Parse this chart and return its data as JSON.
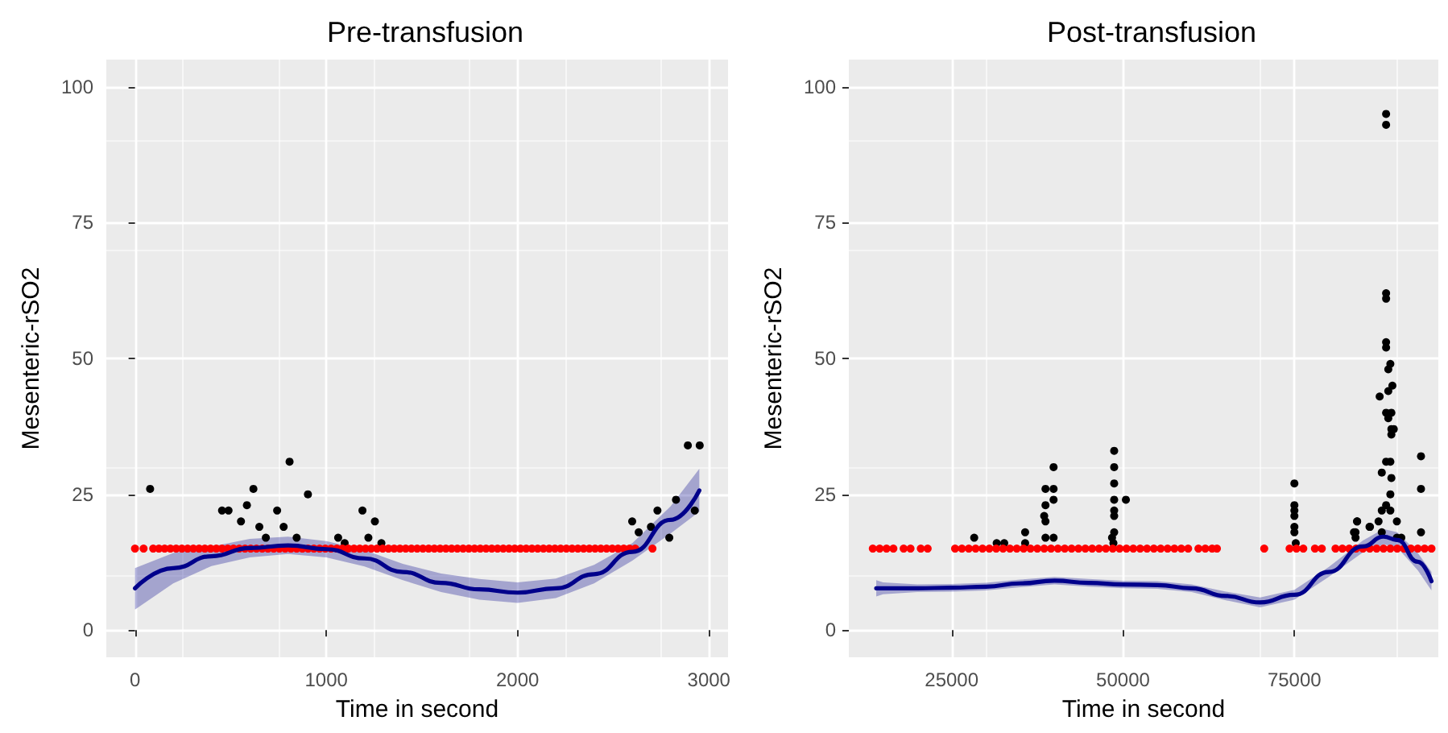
{
  "chart_data": [
    {
      "type": "scatter",
      "title": "Pre-transfusion",
      "xlabel": "Time in second",
      "ylabel": "Mesenteric-rSO2",
      "xlim": [
        -150,
        3100
      ],
      "xticks": [
        0,
        1000,
        2000,
        3000
      ],
      "ylim": [
        -5,
        105
      ],
      "yticks": [
        0,
        25,
        50,
        75,
        100
      ],
      "grid": true,
      "series": [
        {
          "color": "#000000",
          "marker": "circle",
          "x": [
            79,
            455,
            489,
            554,
            585,
            619,
            650,
            684,
            743,
            777,
            808,
            845,
            904,
            1062,
            1096,
            1189,
            1220,
            1254,
            1288,
            2599,
            2633,
            2697,
            2731,
            2793,
            2828,
            2890,
            2926,
            2952
          ],
          "values": [
            26,
            22,
            22,
            20,
            23,
            26,
            19,
            17,
            22,
            19,
            31,
            17,
            25,
            17,
            16,
            22,
            17,
            20,
            16,
            20,
            18,
            19,
            22,
            17,
            24,
            34,
            22,
            34
          ]
        },
        {
          "color": "#ff0000",
          "marker": "circle",
          "x": [
            0,
            45,
            95,
            125,
            155,
            185,
            215,
            245,
            275,
            305,
            335,
            365,
            395,
            425,
            455,
            485,
            515,
            545,
            575,
            605,
            635,
            665,
            695,
            725,
            755,
            785,
            815,
            845,
            875,
            905,
            935,
            965,
            995,
            1025,
            1055,
            1085,
            1115,
            1145,
            1175,
            1205,
            1235,
            1265,
            1295,
            1325,
            1355,
            1385,
            1415,
            1445,
            1475,
            1505,
            1535,
            1565,
            1595,
            1625,
            1655,
            1685,
            1715,
            1745,
            1775,
            1805,
            1835,
            1865,
            1895,
            1925,
            1955,
            1985,
            2015,
            2045,
            2075,
            2105,
            2135,
            2165,
            2195,
            2225,
            2255,
            2285,
            2315,
            2345,
            2375,
            2405,
            2435,
            2465,
            2495,
            2525,
            2555,
            2585,
            2615,
            2705
          ],
          "values": [
            15,
            15,
            15,
            15,
            15,
            15,
            15,
            15,
            15,
            15,
            15,
            15,
            15,
            15,
            15,
            15,
            15,
            15,
            15,
            15,
            15,
            15,
            15,
            15,
            15,
            15,
            15,
            15,
            15,
            15,
            15,
            15,
            15,
            15,
            15,
            15,
            15,
            15,
            15,
            15,
            15,
            15,
            15,
            15,
            15,
            15,
            15,
            15,
            15,
            15,
            15,
            15,
            15,
            15,
            15,
            15,
            15,
            15,
            15,
            15,
            15,
            15,
            15,
            15,
            15,
            15,
            15,
            15,
            15,
            15,
            15,
            15,
            15,
            15,
            15,
            15,
            15,
            15,
            15,
            15,
            15,
            15,
            15,
            15,
            15,
            15,
            15,
            15
          ]
        },
        {
          "type": "line",
          "color": "#00008b",
          "marker": "none",
          "line_style": "solid",
          "x": [
            0,
            200,
            400,
            600,
            800,
            1000,
            1200,
            1400,
            1600,
            1800,
            2000,
            2200,
            2400,
            2600,
            2800,
            2950
          ],
          "values": [
            7.7,
            11.4,
            13.6,
            15.1,
            15.6,
            14.9,
            13.2,
            10.7,
            8.7,
            7.5,
            6.9,
            7.7,
            10.3,
            14.4,
            20.3,
            25.7
          ],
          "lower": [
            3.8,
            8.6,
            11.8,
            13.4,
            14.0,
            13.4,
            11.7,
            9.2,
            7.0,
            5.6,
            5.0,
            5.9,
            8.6,
            12.8,
            17.8,
            21.8
          ],
          "upper": [
            11.4,
            14.2,
            15.4,
            16.8,
            17.2,
            16.4,
            14.7,
            12.2,
            10.4,
            9.4,
            8.8,
            9.5,
            12.0,
            16.0,
            22.8,
            29.7
          ]
        }
      ]
    },
    {
      "type": "scatter",
      "title": "Post-transfusion",
      "xlabel": "Time in second",
      "ylabel": "Mesenteric-rSO2",
      "xlim": [
        10000,
        96000
      ],
      "xticks": [
        25000,
        50000,
        75000
      ],
      "ylim": [
        -5,
        105
      ],
      "yticks": [
        0,
        25,
        50,
        75,
        100
      ],
      "grid": true,
      "series": [
        {
          "color": "#000000",
          "marker": "circle",
          "x": [
            28290,
            31570,
            32670,
            35720,
            35720,
            39870,
            38690,
            39870,
            39870,
            38690,
            38500,
            38690,
            38690,
            39870,
            48710,
            48710,
            48710,
            48710,
            50420,
            48710,
            48710,
            48710,
            48400,
            48600,
            75000,
            75000,
            75000,
            75000,
            75000,
            75000,
            75200,
            83920,
            83920,
            84150,
            85960,
            88380,
            88380,
            88380,
            88380,
            88380,
            88380,
            89000,
            88700,
            89300,
            88700,
            87440,
            88380,
            89150,
            88700,
            89150,
            89500,
            89150,
            88380,
            89000,
            87750,
            89150,
            89000,
            88380,
            87750,
            89000,
            84150,
            86030,
            87280,
            89950,
            83690,
            87750,
            89950,
            90600,
            93470,
            93470,
            93470
          ],
          "values": [
            17,
            16,
            16,
            18,
            16,
            30,
            26,
            26,
            24,
            23,
            21,
            20,
            17,
            17,
            33,
            30,
            27,
            24,
            24,
            22,
            21,
            18,
            17,
            16,
            27,
            23,
            22,
            21,
            19,
            18,
            16,
            18,
            17,
            20,
            19,
            95,
            93,
            62,
            61,
            53,
            52,
            49,
            48,
            45,
            44,
            43,
            40,
            40,
            39,
            37,
            37,
            36,
            31,
            31,
            29,
            28,
            25,
            23,
            22,
            22,
            20,
            19,
            20,
            20,
            18,
            18,
            17,
            17,
            32,
            26,
            18
          ]
        },
        {
          "color": "#ff0000",
          "marker": "circle",
          "x": [
            13500,
            14500,
            15500,
            16500,
            18000,
            19000,
            20500,
            21500,
            25500,
            26500,
            27500,
            28500,
            29500,
            30500,
            31500,
            32500,
            33500,
            34500,
            35500,
            36500,
            37500,
            38500,
            39500,
            40500,
            41500,
            42500,
            43500,
            44500,
            45500,
            46500,
            47500,
            48500,
            49500,
            50500,
            51500,
            52500,
            53500,
            54500,
            55500,
            56500,
            57500,
            58500,
            59500,
            61000,
            62000,
            63000,
            63700,
            70600,
            74300,
            75300,
            76300,
            78000,
            79000,
            81000,
            82000,
            83000,
            84000,
            85000,
            86000,
            87000,
            88000,
            89000,
            90000,
            91000,
            92000,
            93000,
            94000,
            95000
          ],
          "values": [
            15,
            15,
            15,
            15,
            15,
            15,
            15,
            15,
            15,
            15,
            15,
            15,
            15,
            15,
            15,
            15,
            15,
            15,
            15,
            15,
            15,
            15,
            15,
            15,
            15,
            15,
            15,
            15,
            15,
            15,
            15,
            15,
            15,
            15,
            15,
            15,
            15,
            15,
            15,
            15,
            15,
            15,
            15,
            15,
            15,
            15,
            15,
            15,
            15,
            15,
            15,
            15,
            15,
            15,
            15,
            15,
            15,
            15,
            15,
            15,
            15,
            15,
            15,
            15,
            15,
            15,
            15,
            15
          ]
        },
        {
          "type": "line",
          "color": "#00008b",
          "marker": "none",
          "line_style": "solid",
          "x": [
            14000,
            15000,
            20000,
            25000,
            30000,
            35000,
            40000,
            45000,
            50000,
            55000,
            60000,
            65000,
            70000,
            75000,
            80000,
            85000,
            88000,
            90000,
            93000,
            95000
          ],
          "values": [
            7.7,
            7.7,
            7.7,
            7.8,
            8.0,
            8.6,
            9.1,
            8.7,
            8.4,
            8.3,
            7.7,
            6.3,
            5.1,
            6.5,
            10.7,
            15.4,
            17.2,
            16.6,
            12.6,
            9.0
          ],
          "lower": [
            6.2,
            6.6,
            7.0,
            7.1,
            7.3,
            7.9,
            8.4,
            8.0,
            7.7,
            7.6,
            7.0,
            5.5,
            4.2,
            5.6,
            9.8,
            14.3,
            15.8,
            15.2,
            11.0,
            7.3
          ],
          "upper": [
            9.2,
            8.8,
            8.4,
            8.5,
            8.7,
            9.3,
            9.8,
            9.4,
            9.1,
            9.0,
            8.4,
            7.1,
            6.0,
            7.4,
            11.6,
            16.5,
            18.6,
            18.0,
            14.2,
            10.7
          ]
        }
      ]
    }
  ]
}
